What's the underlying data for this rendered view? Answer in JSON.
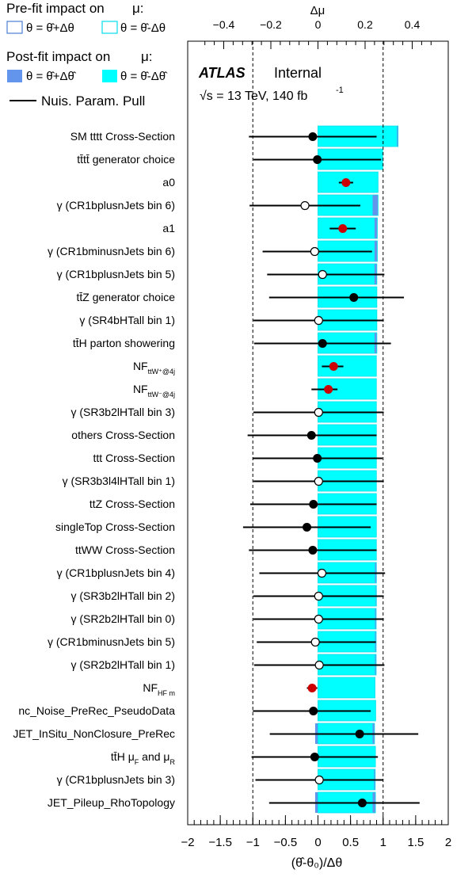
{
  "colors": {
    "prefit_plus": "#ffffff",
    "prefit_plus_border": "#4a7fd6",
    "prefit_minus": "#ffffff",
    "prefit_minus_border": "#00e0e8",
    "postfit_plus": "#6495ed",
    "postfit_minus": "#00ffff",
    "pull_line": "#000000",
    "pull_marker_fill": "#000000",
    "nf_marker": "#cc0000",
    "dashed_line": "#000000"
  },
  "legend": {
    "prefit_title": "Pre-fit impact on",
    "prefit_mu": "μ:",
    "prefit_plus_label": "θ =   θ̂+Δθ",
    "prefit_minus_label": "θ =   θ̂-Δθ",
    "postfit_title": "Post-fit impact on",
    "postfit_mu": "μ:",
    "postfit_plus_label": "θ =   θ̂+Δθ̂",
    "postfit_minus_label": "θ =   θ̂-Δθ̂",
    "pull_label": "Nuis. Param. Pull"
  },
  "atlas": {
    "brand": "ATLAS",
    "status": "Internal",
    "energy": "√s = 13 TeV, 140 fb",
    "lumi_exp": "-1"
  },
  "chart_data": {
    "type": "bar",
    "top_axis": {
      "label": "Δμ",
      "range": [
        -0.49,
        0.49
      ],
      "ticks": [
        -0.4,
        -0.2,
        0,
        0.2,
        0.4
      ],
      "tick_labels": [
        "−0.4",
        "−0.2",
        "0",
        "0.2",
        "0.4"
      ]
    },
    "bottom_axis": {
      "label": "(θ̂-θ₀)/Δθ",
      "range": [
        -2,
        2
      ],
      "ticks": [
        -2,
        -1.5,
        -1,
        -0.5,
        0,
        0.5,
        1,
        1.5,
        2
      ],
      "tick_labels": [
        "−2",
        "−1.5",
        "−1",
        "−0.5",
        "0",
        "0.5",
        "1",
        "1.5",
        "2"
      ]
    },
    "dashed_lines": [
      -1,
      1
    ],
    "parameters": [
      {
        "label": "SM tttt Cross-Section",
        "sub": "",
        "pull": -0.08,
        "err_lo": 0.98,
        "err_hi": 0.98,
        "marker": "filled",
        "impact_plus": 0.34,
        "impact_minus": 0.335
      },
      {
        "label": "tt̄tt̄ generator choice",
        "sub": "",
        "pull": -0.01,
        "err_lo": 0.98,
        "err_hi": 0.98,
        "marker": "filled",
        "impact_plus": 0.275,
        "impact_minus": 0.275
      },
      {
        "label": "a0",
        "sub": "",
        "pull": 0.43,
        "err_lo": 0.11,
        "err_hi": 0.11,
        "marker": "nf",
        "impact_plus": 0.255,
        "impact_minus": 0.255
      },
      {
        "label": "γ (CR1bplusnJets bin 6)",
        "sub": "",
        "pull": -0.2,
        "err_lo": 0.85,
        "err_hi": 0.85,
        "marker": "open",
        "impact_plus": 0.255,
        "impact_minus": 0.232
      },
      {
        "label": "a1",
        "sub": "",
        "pull": 0.38,
        "err_lo": 0.2,
        "err_hi": 0.2,
        "marker": "nf",
        "impact_plus": 0.252,
        "impact_minus": 0.24
      },
      {
        "label": "γ (CR1bminusnJets bin 6)",
        "sub": "",
        "pull": -0.05,
        "err_lo": 0.8,
        "err_hi": 0.88,
        "marker": "open",
        "impact_plus": 0.252,
        "impact_minus": 0.24
      },
      {
        "label": "γ (CR1bplusnJets bin 5)",
        "sub": "",
        "pull": 0.07,
        "err_lo": 0.85,
        "err_hi": 0.95,
        "marker": "open",
        "impact_plus": 0.25,
        "impact_minus": 0.24
      },
      {
        "label": "tt̄Z generator choice",
        "sub": "",
        "pull": 0.55,
        "err_lo": 1.3,
        "err_hi": 0.77,
        "marker": "filled",
        "impact_plus": 0.25,
        "impact_minus": 0.25
      },
      {
        "label": "γ (SR4bHTall bin 1)",
        "sub": "",
        "pull": 0.01,
        "err_lo": 1.0,
        "err_hi": 1.0,
        "marker": "open",
        "impact_plus": 0.25,
        "impact_minus": 0.25
      },
      {
        "label": "tt̄H parton showering",
        "sub": "",
        "pull": 0.07,
        "err_lo": 1.05,
        "err_hi": 1.05,
        "marker": "filled",
        "impact_plus": 0.25,
        "impact_minus": 0.24
      },
      {
        "label": "NF",
        "sub": "ttW⁺@4j",
        "pull": 0.24,
        "err_lo": 0.18,
        "err_hi": 0.15,
        "marker": "nf",
        "impact_plus": 0.248,
        "impact_minus": 0.248
      },
      {
        "label": "NF",
        "sub": "ttW⁻@4j",
        "pull": 0.16,
        "err_lo": 0.26,
        "err_hi": 0.14,
        "marker": "nf",
        "impact_plus": 0.248,
        "impact_minus": 0.248
      },
      {
        "label": "γ (SR3b2lHTall bin 3)",
        "sub": "",
        "pull": 0.01,
        "err_lo": 1.0,
        "err_hi": 1.0,
        "marker": "open",
        "impact_plus": 0.248,
        "impact_minus": 0.248
      },
      {
        "label": "others Cross-Section",
        "sub": "",
        "pull": -0.1,
        "err_lo": 0.98,
        "err_hi": 1.0,
        "marker": "filled",
        "impact_plus": 0.248,
        "impact_minus": 0.248
      },
      {
        "label": "ttt Cross-Section",
        "sub": "",
        "pull": -0.01,
        "err_lo": 0.99,
        "err_hi": 1.0,
        "marker": "filled",
        "impact_plus": 0.248,
        "impact_minus": 0.248
      },
      {
        "label": "γ (SR3b3l4lHTall bin 1)",
        "sub": "",
        "pull": 0.01,
        "err_lo": 1.0,
        "err_hi": 1.0,
        "marker": "open",
        "impact_plus": 0.248,
        "impact_minus": 0.248
      },
      {
        "label": "ttZ Cross-Section",
        "sub": "",
        "pull": -0.07,
        "err_lo": 0.97,
        "err_hi": 0.97,
        "marker": "filled",
        "impact_plus": 0.248,
        "impact_minus": 0.248
      },
      {
        "label": "singleTop Cross-Section",
        "sub": "",
        "pull": -0.17,
        "err_lo": 0.98,
        "err_hi": 0.98,
        "marker": "filled",
        "impact_plus": 0.248,
        "impact_minus": 0.248
      },
      {
        "label": "ttWW Cross-Section",
        "sub": "",
        "pull": -0.08,
        "err_lo": 0.98,
        "err_hi": 0.98,
        "marker": "filled",
        "impact_plus": 0.248,
        "impact_minus": 0.248
      },
      {
        "label": "γ (CR1bplusnJets bin 4)",
        "sub": "",
        "pull": 0.06,
        "err_lo": 0.96,
        "err_hi": 0.97,
        "marker": "open",
        "impact_plus": 0.248,
        "impact_minus": 0.242
      },
      {
        "label": "γ (SR3b2lHTall bin 2)",
        "sub": "",
        "pull": 0.01,
        "err_lo": 1.0,
        "err_hi": 1.0,
        "marker": "open",
        "impact_plus": 0.248,
        "impact_minus": 0.245
      },
      {
        "label": "γ (SR2b2lHTall bin 0)",
        "sub": "",
        "pull": 0.01,
        "err_lo": 1.0,
        "err_hi": 1.0,
        "marker": "open",
        "impact_plus": 0.247,
        "impact_minus": 0.242
      },
      {
        "label": "γ (CR1bminusnJets bin 5)",
        "sub": "",
        "pull": -0.04,
        "err_lo": 0.9,
        "err_hi": 0.93,
        "marker": "open",
        "impact_plus": 0.247,
        "impact_minus": 0.242
      },
      {
        "label": "γ (SR2b2lHTall bin 1)",
        "sub": "",
        "pull": 0.02,
        "err_lo": 1.0,
        "err_hi": 1.0,
        "marker": "open",
        "impact_plus": 0.247,
        "impact_minus": 0.242
      },
      {
        "label": "NF",
        "sub": "HF m",
        "pull": -0.09,
        "err_lo": 0.08,
        "err_hi": 0.08,
        "marker": "nf",
        "impact_plus": 0.242,
        "impact_minus": 0.242
      },
      {
        "label": "nc_Noise_PreRec_PseudoData",
        "sub": "",
        "pull": -0.07,
        "err_lo": 0.93,
        "err_hi": 0.88,
        "marker": "filled",
        "impact_plus": 0.245,
        "impact_minus": 0.245
      },
      {
        "label": "JET_InSitu_NonClosure_PreRec",
        "sub": "",
        "pull": 0.64,
        "err_lo": 1.38,
        "err_hi": 0.9,
        "marker": "filled",
        "impact_plus": 0.24,
        "impact_minus": 0.232,
        "minus_side": -0.012
      },
      {
        "label": "tt̄H   μ",
        "sub": "F",
        "label2": "  and   μ",
        "sub2": "R",
        "pull": -0.05,
        "err_lo": 0.97,
        "err_hi": 0.97,
        "marker": "filled",
        "impact_plus": 0.244,
        "impact_minus": 0.244
      },
      {
        "label": "γ (CR1bplusnJets bin 3)",
        "sub": "",
        "pull": 0.02,
        "err_lo": 0.98,
        "err_hi": 0.98,
        "marker": "open",
        "impact_plus": 0.243,
        "impact_minus": 0.238
      },
      {
        "label": "JET_Pileup_RhoTopology",
        "sub": "",
        "pull": 0.68,
        "err_lo": 1.43,
        "err_hi": 0.88,
        "marker": "filled",
        "impact_plus": 0.244,
        "impact_minus": 0.232,
        "minus_side": -0.012
      }
    ]
  }
}
